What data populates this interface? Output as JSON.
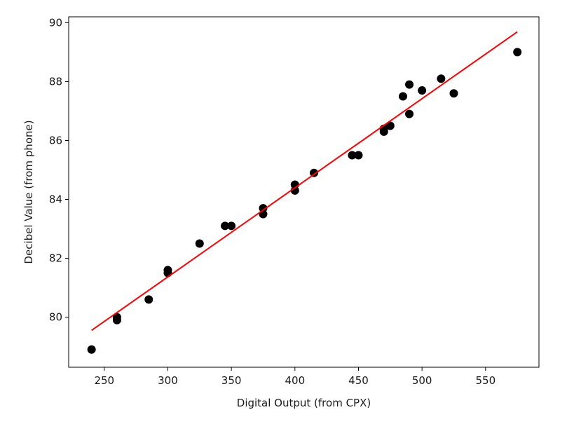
{
  "chart_data": {
    "type": "scatter",
    "title": "",
    "xlabel": "Digital Output (from CPX)",
    "ylabel": "Decibel Value (from phone)",
    "xlim": [
      222,
      592
    ],
    "ylim": [
      78.3,
      90.2
    ],
    "xticks": [
      250,
      300,
      350,
      400,
      450,
      500,
      550
    ],
    "yticks": [
      80,
      82,
      84,
      86,
      88,
      90
    ],
    "grid": false,
    "legend": "none",
    "series": [
      {
        "kind": "scatter",
        "color": "#000000",
        "points": [
          {
            "x": 240,
            "y": 78.9
          },
          {
            "x": 260,
            "y": 79.9
          },
          {
            "x": 260,
            "y": 80.0
          },
          {
            "x": 285,
            "y": 80.6
          },
          {
            "x": 300,
            "y": 81.5
          },
          {
            "x": 300,
            "y": 81.6
          },
          {
            "x": 325,
            "y": 82.5
          },
          {
            "x": 345,
            "y": 83.1
          },
          {
            "x": 350,
            "y": 83.1
          },
          {
            "x": 375,
            "y": 83.5
          },
          {
            "x": 375,
            "y": 83.7
          },
          {
            "x": 400,
            "y": 84.3
          },
          {
            "x": 400,
            "y": 84.5
          },
          {
            "x": 415,
            "y": 84.9
          },
          {
            "x": 445,
            "y": 85.5
          },
          {
            "x": 450,
            "y": 85.5
          },
          {
            "x": 470,
            "y": 86.3
          },
          {
            "x": 470,
            "y": 86.4
          },
          {
            "x": 475,
            "y": 86.5
          },
          {
            "x": 485,
            "y": 87.5
          },
          {
            "x": 490,
            "y": 86.9
          },
          {
            "x": 490,
            "y": 87.9
          },
          {
            "x": 500,
            "y": 87.7
          },
          {
            "x": 515,
            "y": 88.1
          },
          {
            "x": 525,
            "y": 87.6
          },
          {
            "x": 575,
            "y": 89.0
          }
        ]
      },
      {
        "kind": "fit-line",
        "color": "#ff0000",
        "points": [
          {
            "x": 240,
            "y": 79.55
          },
          {
            "x": 575,
            "y": 89.69
          }
        ]
      }
    ]
  }
}
